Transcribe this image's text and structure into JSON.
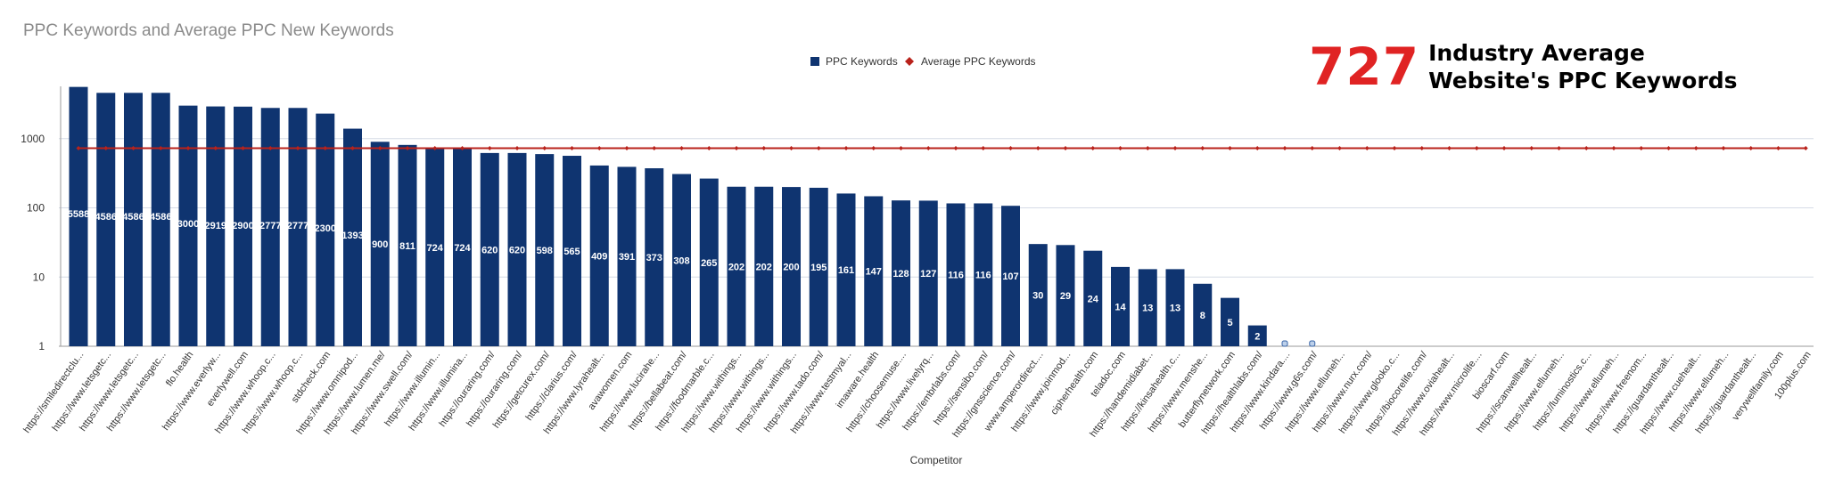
{
  "chart_data": {
    "type": "bar",
    "title": "PPC Keywords  and Average PPC New Keywords",
    "xlabel": "Competitor",
    "ylabel": "",
    "yscale": "log",
    "ylim": [
      1,
      10000
    ],
    "yticks": [
      "1",
      "10",
      "100",
      "1000"
    ],
    "grid": true,
    "legend_position": "top-center",
    "categories": [
      "https://smiledirectclu...",
      "https://www.letsgetc...",
      "https://www.letsgetc...",
      "https://www.letsgetc...",
      "flo.health",
      "https://www.everlyw...",
      "everlywell.com",
      "https://www.whoop.c...",
      "https://www.whoop.c...",
      "stdcheck.com",
      "https://www.omnipod...",
      "https://www.lumen.me/",
      "https://www.swell.com/",
      "https://www.illumin...",
      "https://www.illumina...",
      "https://ouraring.com/",
      "https://ouraring.com/",
      "https://getcurex.com/",
      "https://clarius.com/",
      "https://www.lyrahealt...",
      "avawomen.com",
      "https://www.lucirahe...",
      "https://bellabeat.com/",
      "https://foodmarble.c...",
      "https://www.withings...",
      "https://www.withings...",
      "https://www.withings...",
      "https://www.tado.com/",
      "https://www.testmyal...",
      "imaware.health",
      "https://choosemuse....",
      "https://www.livelyrq...",
      "https://embrlabs.com/",
      "https://sensibo.com/",
      "https://gnsscience.com/",
      "www.amperordirect....",
      "https://www.joinmod...",
      "cipherhealth.com",
      "teladoc.com",
      "https://handemidiabet...",
      "https://kinsahealth.c...",
      "https://www.menshe...",
      "butterflynetwork.com",
      "https://healthlabs.com/",
      "https://www.kindara....",
      "https://www.g6s.com/",
      "https://www.ellumeh...",
      "https://www.nurx.com/",
      "https://www.glooko.c...",
      "https://biocorelife.com/",
      "https://www.oviahealt...",
      "https://www.microlife....",
      "bioscarf.com",
      "https://scanwellhealt...",
      "https://www.ellumeh...",
      "https://luminostics.c...",
      "https://www.ellumeh...",
      "https://www.freenom...",
      "https://guardanthealt...",
      "https://www.cuehealt...",
      "https://www.ellumeh...",
      "https://guardanthealt...",
      "verywellfamily.com",
      "100plus.com"
    ],
    "series": [
      {
        "name": "PPC Keywords",
        "color": "#0f3470",
        "values": [
          5588,
          4586,
          4586,
          4586,
          3000,
          2919,
          2900,
          2777,
          2777,
          2300,
          1393,
          900,
          811,
          724,
          724,
          620,
          620,
          598,
          565,
          409,
          391,
          373,
          308,
          265,
          202,
          202,
          200,
          195,
          161,
          147,
          128,
          127,
          116,
          116,
          107,
          30,
          29,
          24,
          14,
          13,
          13,
          8,
          5,
          2,
          1,
          1,
          0,
          0,
          0,
          0,
          0,
          0,
          0,
          0,
          0,
          0,
          0,
          0,
          0,
          0,
          0,
          0,
          0,
          0
        ],
        "labels": [
          "5588",
          "4586",
          "4586",
          "4586",
          "3000",
          "2919",
          "2900",
          "2777",
          "2777",
          "2300",
          "1393",
          "900",
          "811",
          "724",
          "724",
          "620",
          "620",
          "598",
          "565",
          "409",
          "391",
          "373",
          "308",
          "265",
          "202",
          "202",
          "200",
          "195",
          "161",
          "147",
          "128",
          "127",
          "116",
          "116",
          "107",
          "30",
          "29",
          "24",
          "14",
          "13",
          "13",
          "8",
          "5",
          "2",
          "1",
          "1",
          "",
          "",
          "",
          "",
          "",
          "",
          "",
          "",
          "",
          "",
          "",
          "",
          "",
          "",
          "",
          "",
          "",
          ""
        ]
      },
      {
        "name": "Average PPC Keywords",
        "color": "#b9221b",
        "type": "line",
        "value": 727
      }
    ],
    "annotation": {
      "value": "727",
      "value_color": "#e02323",
      "caption": "Industry Average\nWebsite's PPC Keywords"
    }
  }
}
